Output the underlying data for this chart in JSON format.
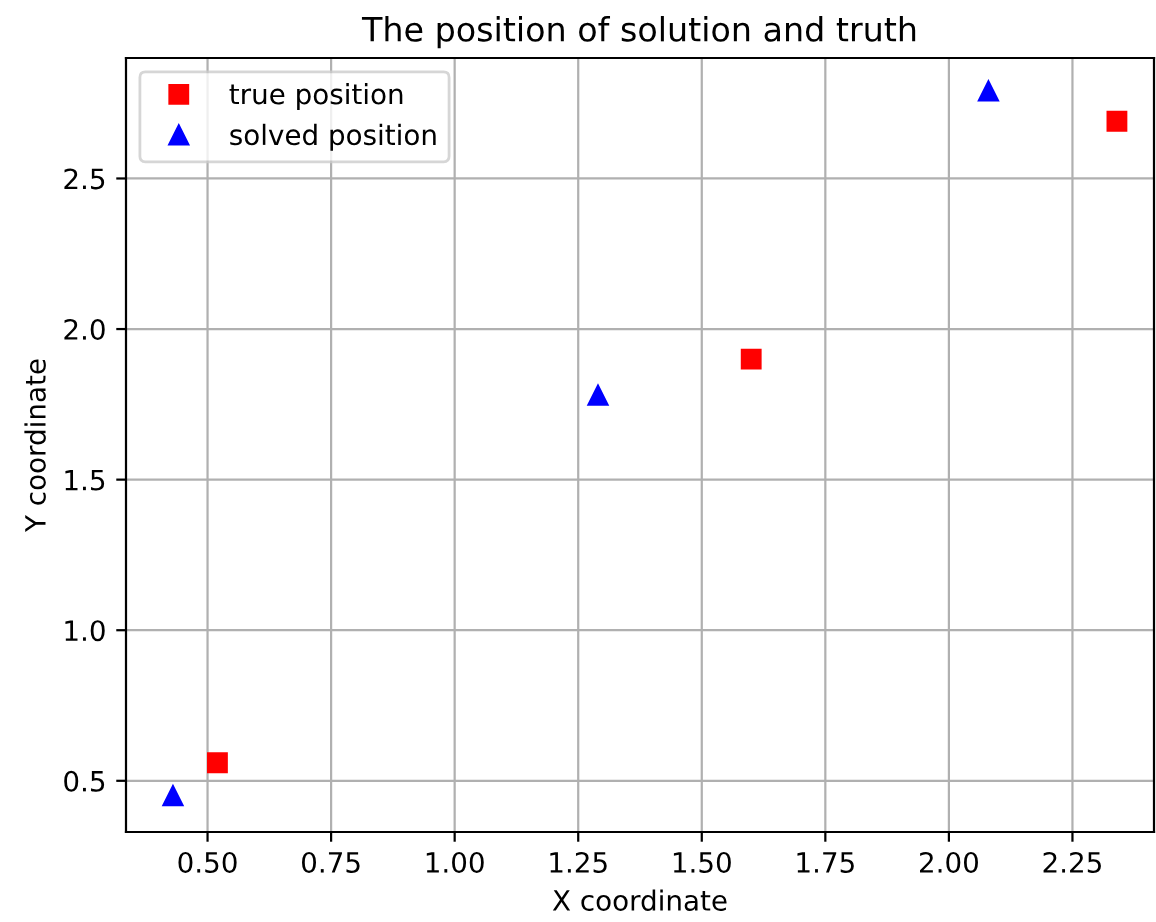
{
  "chart_data": {
    "type": "scatter",
    "title": "The position of solution and truth",
    "xlabel": "X coordinate",
    "ylabel": "Y coordinate",
    "series": [
      {
        "name": "true position",
        "color": "#ff0000",
        "marker": "square",
        "x": [
          0.52,
          1.6,
          2.34
        ],
        "values": [
          0.56,
          1.9,
          2.69
        ]
      },
      {
        "name": "solved position",
        "color": "#0000ff",
        "marker": "triangle",
        "x": [
          0.43,
          1.29,
          2.08
        ],
        "values": [
          0.45,
          1.78,
          2.79
        ]
      }
    ],
    "xlim": [
      0.335,
      2.415
    ],
    "ylim": [
      0.33,
      2.9
    ],
    "xticks": [
      {
        "value": 0.5,
        "label": "0.50"
      },
      0.75,
      {
        "value": 1.0,
        "label": "1.00"
      },
      1.25,
      {
        "value": 1.5,
        "label": "1.50"
      },
      1.75,
      {
        "value": 2.0,
        "label": "2.00"
      },
      2.25
    ],
    "yticks": [
      0.5,
      {
        "value": 1,
        "label": "1.0"
      },
      1.5,
      {
        "value": 2,
        "label": "2.0"
      },
      2.5
    ],
    "grid": true,
    "legend": "top left"
  }
}
